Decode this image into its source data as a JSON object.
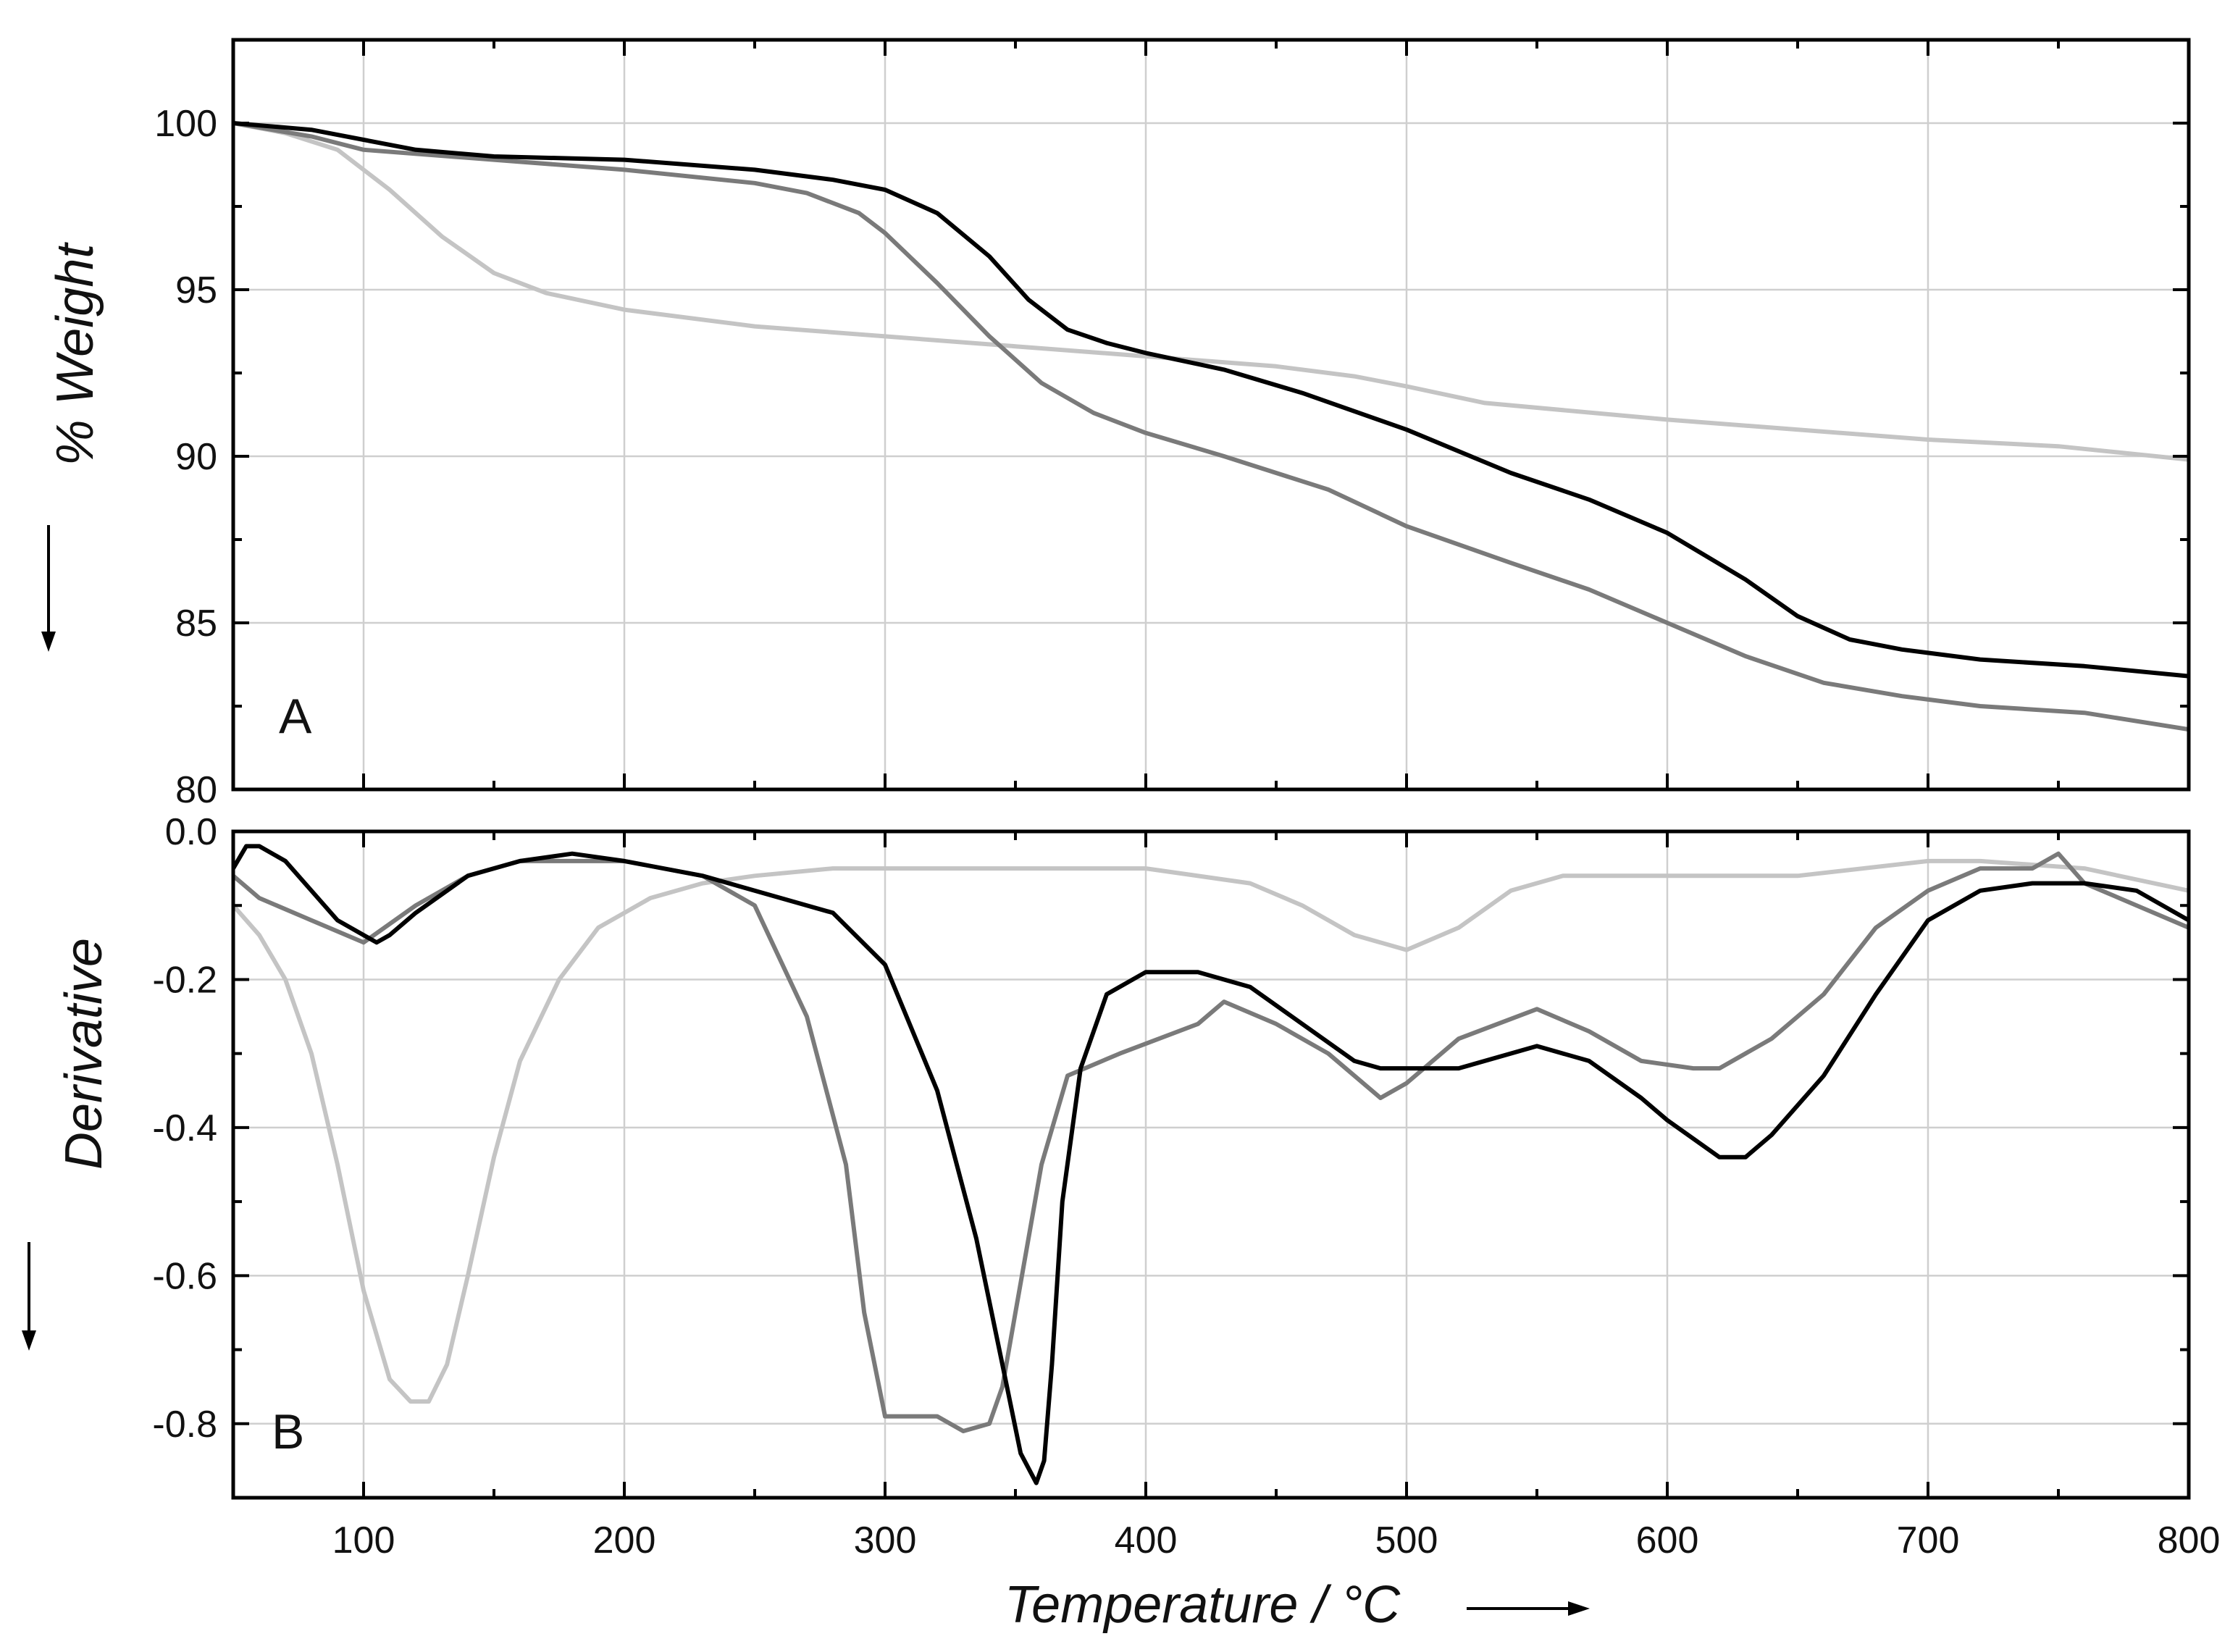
{
  "chart_data": [
    {
      "type": "line",
      "panel_label": "A",
      "title": "",
      "xlabel": "Temperature / °C",
      "ylabel": "% Weight",
      "xlim": [
        50,
        800
      ],
      "ylim": [
        80,
        102.5
      ],
      "xticks": [
        100,
        200,
        300,
        400,
        500,
        600,
        700,
        800
      ],
      "yticks": [
        80,
        85,
        90,
        95,
        100
      ],
      "y_tick_labels": [
        "80",
        "85",
        "90",
        "95",
        "100"
      ],
      "grid": true,
      "series": [
        {
          "name": "black",
          "color": "#000000",
          "x": [
            50,
            80,
            100,
            120,
            150,
            200,
            250,
            280,
            300,
            320,
            340,
            355,
            370,
            385,
            400,
            430,
            460,
            500,
            540,
            570,
            600,
            630,
            650,
            670,
            690,
            720,
            760,
            800
          ],
          "y": [
            100,
            99.8,
            99.5,
            99.2,
            99.0,
            98.9,
            98.6,
            98.3,
            98.0,
            97.3,
            96.0,
            94.7,
            93.8,
            93.4,
            93.1,
            92.6,
            91.9,
            90.8,
            89.5,
            88.7,
            87.7,
            86.3,
            85.2,
            84.5,
            84.2,
            83.9,
            83.7,
            83.4
          ]
        },
        {
          "name": "dark-gray",
          "color": "#7a7a7a",
          "x": [
            50,
            80,
            100,
            150,
            200,
            250,
            270,
            290,
            300,
            320,
            340,
            360,
            380,
            400,
            430,
            470,
            500,
            540,
            570,
            600,
            630,
            660,
            690,
            720,
            760,
            800
          ],
          "y": [
            100,
            99.6,
            99.2,
            98.9,
            98.6,
            98.2,
            97.9,
            97.3,
            96.7,
            95.2,
            93.6,
            92.2,
            91.3,
            90.7,
            90.0,
            89.0,
            87.9,
            86.8,
            86.0,
            85.0,
            84.0,
            83.2,
            82.8,
            82.5,
            82.3,
            81.8
          ]
        },
        {
          "name": "light-gray",
          "color": "#c4c4c4",
          "x": [
            50,
            70,
            90,
            110,
            130,
            150,
            170,
            200,
            250,
            300,
            350,
            400,
            450,
            480,
            500,
            530,
            600,
            700,
            750,
            800
          ],
          "y": [
            100,
            99.7,
            99.2,
            98.0,
            96.6,
            95.5,
            94.9,
            94.4,
            93.9,
            93.6,
            93.3,
            93.0,
            92.7,
            92.4,
            92.1,
            91.6,
            91.1,
            90.5,
            90.3,
            89.9
          ]
        }
      ]
    },
    {
      "type": "line",
      "panel_label": "B",
      "title": "",
      "xlabel": "Temperature / °C",
      "ylabel": "Derivative",
      "xlim": [
        50,
        800
      ],
      "ylim": [
        -0.9,
        0.0
      ],
      "xticks": [
        100,
        200,
        300,
        400,
        500,
        600,
        700,
        800
      ],
      "x_tick_labels": [
        "100",
        "200",
        "300",
        "400",
        "500",
        "600",
        "700",
        "800"
      ],
      "yticks": [
        0.0,
        -0.2,
        -0.4,
        -0.6,
        -0.8
      ],
      "y_tick_labels": [
        "0.0",
        "-0.2",
        "-0.4",
        "-0.6",
        "-0.8"
      ],
      "grid": true,
      "series": [
        {
          "name": "black",
          "color": "#000000",
          "x": [
            50,
            55,
            60,
            70,
            80,
            90,
            100,
            105,
            110,
            120,
            140,
            160,
            180,
            200,
            230,
            260,
            280,
            300,
            320,
            335,
            345,
            352,
            358,
            361,
            364,
            368,
            375,
            385,
            400,
            420,
            440,
            460,
            480,
            490,
            500,
            520,
            550,
            570,
            590,
            600,
            620,
            630,
            640,
            660,
            680,
            700,
            720,
            740,
            760,
            780,
            800
          ],
          "y": [
            -0.05,
            -0.02,
            -0.02,
            -0.04,
            -0.08,
            -0.12,
            -0.14,
            -0.15,
            -0.14,
            -0.11,
            -0.06,
            -0.04,
            -0.03,
            -0.04,
            -0.06,
            -0.09,
            -0.11,
            -0.18,
            -0.35,
            -0.55,
            -0.72,
            -0.84,
            -0.88,
            -0.85,
            -0.72,
            -0.5,
            -0.32,
            -0.22,
            -0.19,
            -0.19,
            -0.21,
            -0.26,
            -0.31,
            -0.32,
            -0.32,
            -0.32,
            -0.29,
            -0.31,
            -0.36,
            -0.39,
            -0.44,
            -0.44,
            -0.41,
            -0.33,
            -0.22,
            -0.12,
            -0.08,
            -0.07,
            -0.07,
            -0.08,
            -0.12
          ]
        },
        {
          "name": "dark-gray",
          "color": "#7a7a7a",
          "x": [
            50,
            60,
            80,
            100,
            120,
            140,
            160,
            200,
            230,
            250,
            270,
            285,
            292,
            300,
            310,
            320,
            330,
            340,
            345,
            350,
            355,
            360,
            370,
            390,
            420,
            430,
            450,
            470,
            490,
            500,
            520,
            550,
            570,
            590,
            610,
            620,
            640,
            660,
            680,
            700,
            720,
            740,
            750,
            760,
            780,
            800
          ],
          "y": [
            -0.06,
            -0.09,
            -0.12,
            -0.15,
            -0.1,
            -0.06,
            -0.04,
            -0.04,
            -0.06,
            -0.1,
            -0.25,
            -0.45,
            -0.65,
            -0.79,
            -0.79,
            -0.79,
            -0.81,
            -0.8,
            -0.75,
            -0.65,
            -0.55,
            -0.45,
            -0.33,
            -0.3,
            -0.26,
            -0.23,
            -0.26,
            -0.3,
            -0.36,
            -0.34,
            -0.28,
            -0.24,
            -0.27,
            -0.31,
            -0.32,
            -0.32,
            -0.28,
            -0.22,
            -0.13,
            -0.08,
            -0.05,
            -0.05,
            -0.03,
            -0.07,
            -0.1,
            -0.13
          ]
        },
        {
          "name": "light-gray",
          "color": "#c4c4c4",
          "x": [
            50,
            60,
            70,
            80,
            90,
            100,
            110,
            118,
            125,
            132,
            140,
            150,
            160,
            175,
            190,
            210,
            230,
            250,
            280,
            320,
            400,
            440,
            460,
            480,
            500,
            520,
            540,
            560,
            600,
            650,
            700,
            720,
            760,
            800
          ],
          "y": [
            -0.1,
            -0.14,
            -0.2,
            -0.3,
            -0.45,
            -0.62,
            -0.74,
            -0.77,
            -0.77,
            -0.72,
            -0.6,
            -0.44,
            -0.31,
            -0.2,
            -0.13,
            -0.09,
            -0.07,
            -0.06,
            -0.05,
            -0.05,
            -0.05,
            -0.07,
            -0.1,
            -0.14,
            -0.16,
            -0.13,
            -0.08,
            -0.06,
            -0.06,
            -0.06,
            -0.04,
            -0.04,
            -0.05,
            -0.08
          ]
        }
      ]
    }
  ]
}
